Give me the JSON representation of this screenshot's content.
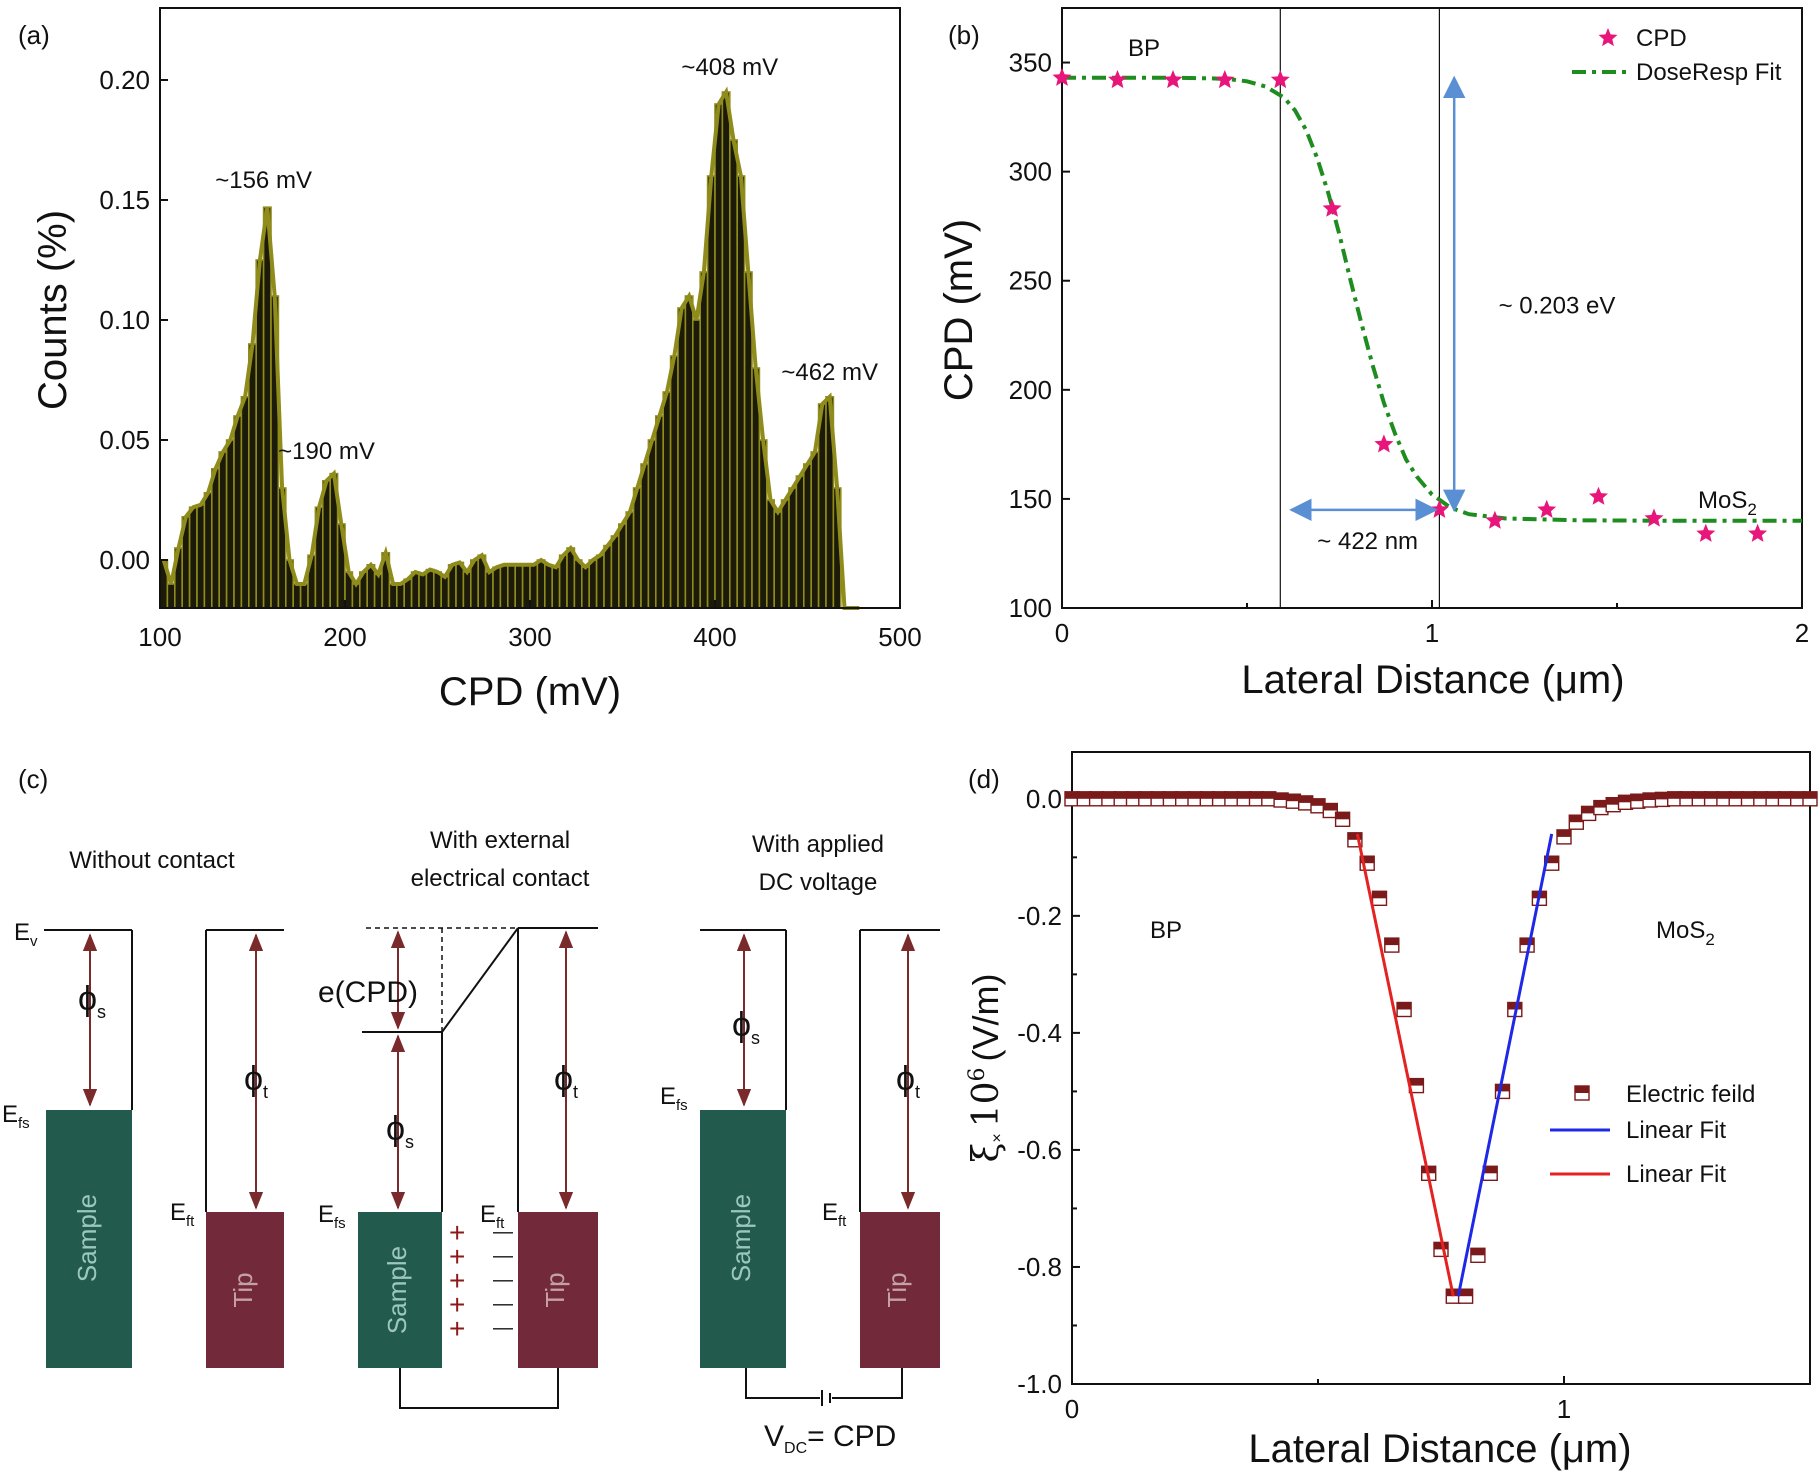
{
  "colors": {
    "hist_fill": "#1c1a08",
    "hist_edge": "#8f8c1c",
    "cpd_star": "#e8167a",
    "dose_fit": "#1e8c1e",
    "arrow": "#5b8fd4",
    "sample_block": "#235a4e",
    "tip_block": "#722a3a",
    "band_arrow": "#7a2a2a",
    "ef_marker": "#7a1a1a",
    "linear_red": "#e52222",
    "linear_blue": "#1e28e6"
  },
  "chart_data": [
    {
      "id": "a",
      "panel_label": "(a)",
      "type": "bar",
      "xlabel": "CPD (mV)",
      "ylabel": "Counts (%)",
      "xlim": [
        100,
        500
      ],
      "ylim": [
        -0.02,
        0.23
      ],
      "xticks": [
        100,
        200,
        300,
        400,
        500
      ],
      "yticks": [
        0.0,
        0.05,
        0.1,
        0.15,
        0.2
      ],
      "ytick_labels": [
        "0.00",
        "0.05",
        "0.10",
        "0.15",
        "0.20"
      ],
      "bin_width": 4,
      "x": [
        100,
        104,
        108,
        112,
        116,
        120,
        124,
        128,
        132,
        136,
        140,
        144,
        148,
        152,
        156,
        160,
        164,
        168,
        172,
        176,
        180,
        184,
        188,
        192,
        196,
        200,
        204,
        208,
        212,
        216,
        220,
        224,
        228,
        232,
        236,
        240,
        244,
        248,
        252,
        256,
        260,
        264,
        268,
        272,
        276,
        280,
        284,
        288,
        292,
        296,
        300,
        304,
        308,
        312,
        316,
        320,
        324,
        328,
        332,
        336,
        340,
        344,
        348,
        352,
        356,
        360,
        364,
        368,
        372,
        376,
        380,
        384,
        388,
        392,
        396,
        400,
        404,
        408,
        412,
        416,
        420,
        424,
        428,
        432,
        436,
        440,
        444,
        448,
        452,
        456,
        460,
        464,
        468,
        472,
        476
      ],
      "values": [
        0.0,
        -0.01,
        0.005,
        0.018,
        0.022,
        0.023,
        0.028,
        0.038,
        0.045,
        0.05,
        0.06,
        0.068,
        0.09,
        0.125,
        0.147,
        0.11,
        0.03,
        0.0,
        -0.01,
        -0.01,
        0.002,
        0.022,
        0.033,
        0.036,
        0.015,
        -0.005,
        -0.01,
        -0.005,
        -0.002,
        -0.006,
        0.003,
        -0.01,
        -0.01,
        -0.008,
        -0.005,
        -0.006,
        -0.004,
        -0.005,
        -0.007,
        -0.002,
        -0.001,
        -0.005,
        0.0,
        0.002,
        -0.005,
        -0.003,
        -0.002,
        -0.002,
        -0.002,
        -0.002,
        -0.002,
        0.0,
        -0.002,
        -0.003,
        0.002,
        0.005,
        0.0,
        -0.003,
        0.0,
        0.002,
        0.006,
        0.01,
        0.015,
        0.02,
        0.03,
        0.04,
        0.05,
        0.06,
        0.07,
        0.085,
        0.105,
        0.11,
        0.1,
        0.12,
        0.16,
        0.19,
        0.195,
        0.175,
        0.16,
        0.12,
        0.08,
        0.05,
        0.025,
        0.02,
        0.025,
        0.03,
        0.035,
        0.04,
        0.045,
        0.065,
        0.068,
        0.03,
        -0.02,
        -0.02,
        -0.02
      ],
      "annotations": [
        {
          "text": "~156 mV",
          "x": 156,
          "y": 0.155
        },
        {
          "text": "~190 mV",
          "x": 190,
          "y": 0.042
        },
        {
          "text": "~408 mV",
          "x": 408,
          "y": 0.202
        },
        {
          "text": "~462 mV",
          "x": 462,
          "y": 0.075
        }
      ]
    },
    {
      "id": "b",
      "panel_label": "(b)",
      "type": "scatter",
      "xlabel": "Lateral Distance (μm)",
      "ylabel": "CPD (mV)",
      "xlim": [
        0,
        2
      ],
      "ylim": [
        100,
        375
      ],
      "xticks": [
        0,
        1,
        2
      ],
      "yticks": [
        100,
        150,
        200,
        250,
        300,
        350
      ],
      "series": [
        {
          "name": "CPD",
          "marker": "star",
          "x": [
            0.0,
            0.15,
            0.3,
            0.44,
            0.59,
            0.73,
            0.87,
            1.02,
            1.17,
            1.31,
            1.45,
            1.6,
            1.74,
            1.88
          ],
          "y": [
            343,
            342,
            342,
            342,
            342,
            283,
            175,
            145,
            140,
            145,
            151,
            141,
            134,
            134
          ]
        },
        {
          "name": "DoseResp Fit",
          "line_style": "dash-dot",
          "x": [
            0.0,
            0.1,
            0.2,
            0.3,
            0.4,
            0.45,
            0.5,
            0.55,
            0.6,
            0.63,
            0.66,
            0.69,
            0.72,
            0.75,
            0.78,
            0.81,
            0.84,
            0.87,
            0.9,
            0.93,
            0.96,
            1.0,
            1.05,
            1.1,
            1.2,
            1.4,
            1.6,
            1.8,
            2.0
          ],
          "y": [
            343,
            343,
            343,
            343,
            342.8,
            342.4,
            341.4,
            339,
            334,
            328,
            319,
            306,
            290,
            271,
            250,
            230,
            211,
            194,
            180,
            168,
            160,
            152,
            146,
            143,
            141,
            140.2,
            140,
            140,
            140
          ]
        }
      ],
      "vlines_x": [
        0.59,
        1.02
      ],
      "labels": {
        "bp": "BP",
        "mos2": "MoS",
        "mos2_sub": "2"
      },
      "annotations": [
        {
          "text": "~ 0.203 eV",
          "x": 1.18,
          "y": 235
        },
        {
          "text": "~ 422 nm",
          "x": 0.69,
          "y": 127
        }
      ],
      "vertical_arrow": {
        "x": 1.06,
        "y_from": 145,
        "y_to": 343
      },
      "horizontal_arrow": {
        "y": 145,
        "x_from": 0.62,
        "x_to": 1.01
      },
      "legend_position": "top-right"
    },
    {
      "id": "d",
      "panel_label": "(d)",
      "type": "scatter",
      "xlabel": "Lateral Distance (μm)",
      "ylabel": "ξ× 10⁶ (V/m)",
      "ylabel_parts": {
        "xi": "ξ",
        "times": "×",
        "base": "10",
        "exp": "6",
        "unit": "(V/m)"
      },
      "xlim": [
        0,
        1.5
      ],
      "ylim": [
        -1.0,
        0.08
      ],
      "xticks": [
        0,
        1
      ],
      "yticks": [
        0.0,
        -0.2,
        -0.4,
        -0.6,
        -0.8,
        -1.0
      ],
      "ytick_labels": [
        "0.0",
        "-0.2",
        "-0.4",
        "-0.6",
        "-0.8",
        "-1.0"
      ],
      "series": [
        {
          "name": "Electric feild",
          "marker": "half-filled square",
          "x": [
            0.0,
            0.025,
            0.05,
            0.075,
            0.1,
            0.125,
            0.15,
            0.175,
            0.2,
            0.225,
            0.25,
            0.275,
            0.3,
            0.325,
            0.35,
            0.375,
            0.4,
            0.425,
            0.45,
            0.475,
            0.5,
            0.525,
            0.55,
            0.575,
            0.6,
            0.625,
            0.65,
            0.675,
            0.7,
            0.725,
            0.75,
            0.775,
            0.8,
            0.825,
            0.85,
            0.875,
            0.9,
            0.925,
            0.95,
            0.975,
            1.0,
            1.025,
            1.05,
            1.075,
            1.1,
            1.125,
            1.15,
            1.175,
            1.2,
            1.225,
            1.25,
            1.275,
            1.3,
            1.325,
            1.35,
            1.375,
            1.4,
            1.425,
            1.45,
            1.475,
            1.5
          ],
          "y": [
            0,
            0,
            0,
            0,
            0,
            0,
            0,
            0,
            0,
            0,
            0,
            0,
            0,
            0,
            0,
            0,
            0,
            -0.002,
            -0.004,
            -0.007,
            -0.012,
            -0.02,
            -0.035,
            -0.07,
            -0.11,
            -0.17,
            -0.25,
            -0.36,
            -0.49,
            -0.64,
            -0.77,
            -0.85,
            -0.85,
            -0.78,
            -0.64,
            -0.5,
            -0.36,
            -0.25,
            -0.17,
            -0.11,
            -0.065,
            -0.04,
            -0.025,
            -0.015,
            -0.01,
            -0.006,
            -0.004,
            -0.002,
            -0.001,
            0,
            0,
            0,
            0,
            0,
            0,
            0,
            0,
            0,
            0,
            0,
            0
          ]
        },
        {
          "name": "Linear Fit",
          "color_key": "linear_blue",
          "x": [
            0.785,
            0.975
          ],
          "y": [
            -0.85,
            -0.06
          ]
        },
        {
          "name": "Linear Fit",
          "color_key": "linear_red",
          "x": [
            0.58,
            0.775
          ],
          "y": [
            -0.06,
            -0.85
          ]
        }
      ],
      "labels": {
        "bp": "BP",
        "mos2": "MoS",
        "mos2_sub": "2"
      },
      "legend_position": "right"
    }
  ],
  "panel_c": {
    "panel_label": "(c)",
    "headers": {
      "left": "Without contact",
      "middle_line1": "With external",
      "middle_line2": "electrical contact",
      "right_line1": "With applied",
      "right_line2": "DC voltage"
    },
    "labels": {
      "ev": "E",
      "ev_sub": "v",
      "efs": "E",
      "efs_sub": "fs",
      "eft": "E",
      "eft_sub": "ft",
      "phi": "ϕ",
      "phi_s_sub": "s",
      "phi_t_sub": "t",
      "ecpd": "e(CPD)",
      "sample": "Sample",
      "tip": "Tip",
      "plus": "+",
      "minus": "—",
      "vdc": "V",
      "vdc_sub": "DC",
      "vdc_eq": "= CPD"
    }
  }
}
